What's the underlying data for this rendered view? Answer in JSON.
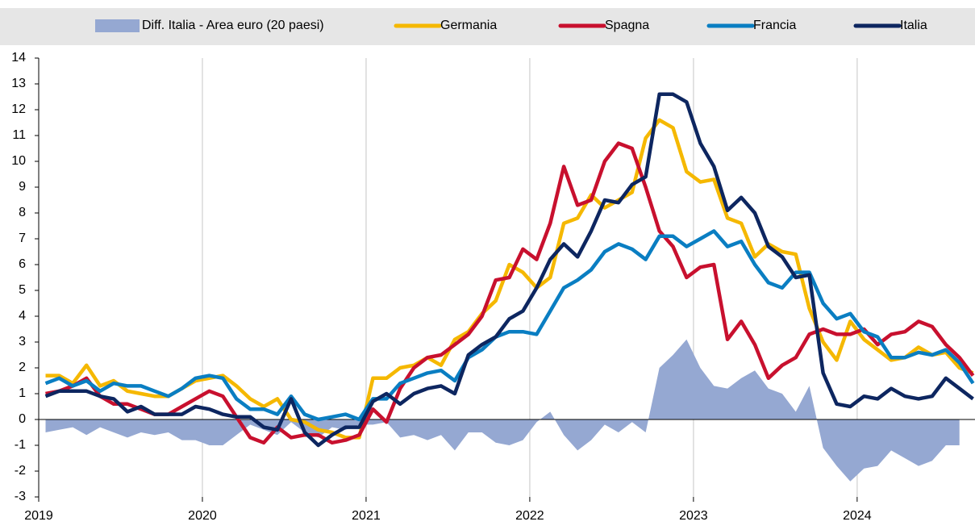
{
  "chart_data": {
    "type": "line",
    "x": [
      2019.042,
      2019.125,
      2019.208,
      2019.292,
      2019.375,
      2019.458,
      2019.542,
      2019.625,
      2019.708,
      2019.792,
      2019.875,
      2019.958,
      2020.042,
      2020.125,
      2020.208,
      2020.292,
      2020.375,
      2020.458,
      2020.542,
      2020.625,
      2020.708,
      2020.792,
      2020.875,
      2020.958,
      2021.042,
      2021.125,
      2021.208,
      2021.292,
      2021.375,
      2021.458,
      2021.542,
      2021.625,
      2021.708,
      2021.792,
      2021.875,
      2021.958,
      2022.042,
      2022.125,
      2022.208,
      2022.292,
      2022.375,
      2022.458,
      2022.542,
      2022.625,
      2022.708,
      2022.792,
      2022.875,
      2022.958,
      2023.042,
      2023.125,
      2023.208,
      2023.292,
      2023.375,
      2023.458,
      2023.542,
      2023.625,
      2023.708,
      2023.792,
      2023.875,
      2023.958,
      2024.042,
      2024.125,
      2024.208,
      2024.292,
      2024.375,
      2024.458,
      2024.542,
      2024.625,
      2024.708
    ],
    "xlim": [
      2019,
      2024.72
    ],
    "xticks": [
      2019,
      2020,
      2021,
      2022,
      2023,
      2024
    ],
    "ylim": [
      -3,
      14
    ],
    "yticks": [
      -3,
      -2,
      -1,
      0,
      1,
      2,
      3,
      4,
      5,
      6,
      7,
      8,
      9,
      10,
      11,
      12,
      13,
      14
    ],
    "series": [
      {
        "name": "Diff. Italia - Area euro (20 paesi)",
        "type": "area",
        "color": "#95a8d2",
        "values": [
          -0.5,
          -0.4,
          -0.3,
          -0.6,
          -0.3,
          -0.5,
          -0.7,
          -0.5,
          -0.6,
          -0.5,
          -0.8,
          -0.8,
          -1.0,
          -1.0,
          -0.6,
          -0.2,
          -0.4,
          -0.6,
          -0.1,
          -0.5,
          -0.7,
          -0.3,
          -0.4,
          -0.2,
          -0.2,
          -0.1,
          -0.7,
          -0.6,
          -0.8,
          -0.6,
          -1.2,
          -0.5,
          -0.5,
          -0.9,
          -1.0,
          -0.8,
          -0.1,
          0.3,
          -0.6,
          -1.2,
          -0.8,
          -0.2,
          -0.5,
          -0.1,
          -0.5,
          2.0,
          2.5,
          3.1,
          2.0,
          1.3,
          1.2,
          1.6,
          1.9,
          1.2,
          1.0,
          0.3,
          1.3,
          -1.1,
          -1.8,
          -2.4,
          -1.9,
          -1.8,
          -1.2,
          -1.5,
          -1.8,
          -1.6,
          -1.0,
          -1.0,
          null
        ]
      },
      {
        "name": "Germania",
        "type": "line",
        "color": "#f5b800",
        "values": [
          1.7,
          1.7,
          1.4,
          2.1,
          1.3,
          1.5,
          1.1,
          1.0,
          0.9,
          0.9,
          1.2,
          1.5,
          1.6,
          1.7,
          1.3,
          0.8,
          0.5,
          0.8,
          0.0,
          -0.1,
          -0.4,
          -0.5,
          -0.7,
          -0.7,
          1.6,
          1.6,
          2.0,
          2.1,
          2.4,
          2.1,
          3.1,
          3.4,
          4.1,
          4.6,
          6.0,
          5.7,
          5.1,
          5.5,
          7.6,
          7.8,
          8.7,
          8.2,
          8.5,
          8.8,
          10.9,
          11.6,
          11.3,
          9.6,
          9.2,
          9.3,
          7.8,
          7.6,
          6.3,
          6.8,
          6.5,
          6.4,
          4.3,
          3.0,
          2.3,
          3.8,
          3.1,
          2.7,
          2.3,
          2.4,
          2.8,
          2.5,
          2.6,
          2.0,
          1.8
        ]
      },
      {
        "name": "Spagna",
        "type": "line",
        "color": "#c8102e",
        "values": [
          1.0,
          1.1,
          1.3,
          1.6,
          0.9,
          0.6,
          0.6,
          0.4,
          0.2,
          0.2,
          0.5,
          0.8,
          1.1,
          0.9,
          0.1,
          -0.7,
          -0.9,
          -0.3,
          -0.7,
          -0.6,
          -0.6,
          -0.9,
          -0.8,
          -0.6,
          0.4,
          -0.1,
          1.2,
          2.0,
          2.4,
          2.5,
          2.9,
          3.3,
          4.0,
          5.4,
          5.5,
          6.6,
          6.2,
          7.6,
          9.8,
          8.3,
          8.5,
          10.0,
          10.7,
          10.5,
          9.0,
          7.3,
          6.7,
          5.5,
          5.9,
          6.0,
          3.1,
          3.8,
          2.9,
          1.6,
          2.1,
          2.4,
          3.3,
          3.5,
          3.3,
          3.3,
          3.5,
          2.9,
          3.3,
          3.4,
          3.8,
          3.6,
          2.9,
          2.4,
          1.7
        ]
      },
      {
        "name": "Francia",
        "type": "line",
        "color": "#0a7ec2",
        "values": [
          1.4,
          1.6,
          1.3,
          1.5,
          1.1,
          1.4,
          1.3,
          1.3,
          1.1,
          0.9,
          1.2,
          1.6,
          1.7,
          1.6,
          0.8,
          0.4,
          0.4,
          0.2,
          0.9,
          0.2,
          0.0,
          0.1,
          0.2,
          0.0,
          0.8,
          0.8,
          1.4,
          1.6,
          1.8,
          1.9,
          1.5,
          2.4,
          2.7,
          3.2,
          3.4,
          3.4,
          3.3,
          4.2,
          5.1,
          5.4,
          5.8,
          6.5,
          6.8,
          6.6,
          6.2,
          7.1,
          7.1,
          6.7,
          7.0,
          7.3,
          6.7,
          6.9,
          6.0,
          5.3,
          5.1,
          5.7,
          5.7,
          4.5,
          3.9,
          4.1,
          3.4,
          3.2,
          2.4,
          2.4,
          2.6,
          2.5,
          2.7,
          2.2,
          1.4
        ]
      },
      {
        "name": "Italia",
        "type": "line",
        "color": "#0d2660",
        "values": [
          0.9,
          1.1,
          1.1,
          1.1,
          0.9,
          0.8,
          0.3,
          0.5,
          0.2,
          0.2,
          0.2,
          0.5,
          0.4,
          0.2,
          0.1,
          0.1,
          -0.3,
          -0.4,
          0.8,
          -0.5,
          -1.0,
          -0.6,
          -0.3,
          -0.3,
          0.7,
          1.0,
          0.6,
          1.0,
          1.2,
          1.3,
          1.0,
          2.5,
          2.9,
          3.2,
          3.9,
          4.2,
          5.1,
          6.2,
          6.8,
          6.3,
          7.3,
          8.5,
          8.4,
          9.1,
          9.4,
          12.6,
          12.6,
          12.3,
          10.7,
          9.8,
          8.1,
          8.6,
          8.0,
          6.7,
          6.3,
          5.5,
          5.6,
          1.8,
          0.6,
          0.5,
          0.9,
          0.8,
          1.2,
          0.9,
          0.8,
          0.9,
          1.6,
          1.2,
          0.8
        ]
      }
    ],
    "grid": true
  }
}
